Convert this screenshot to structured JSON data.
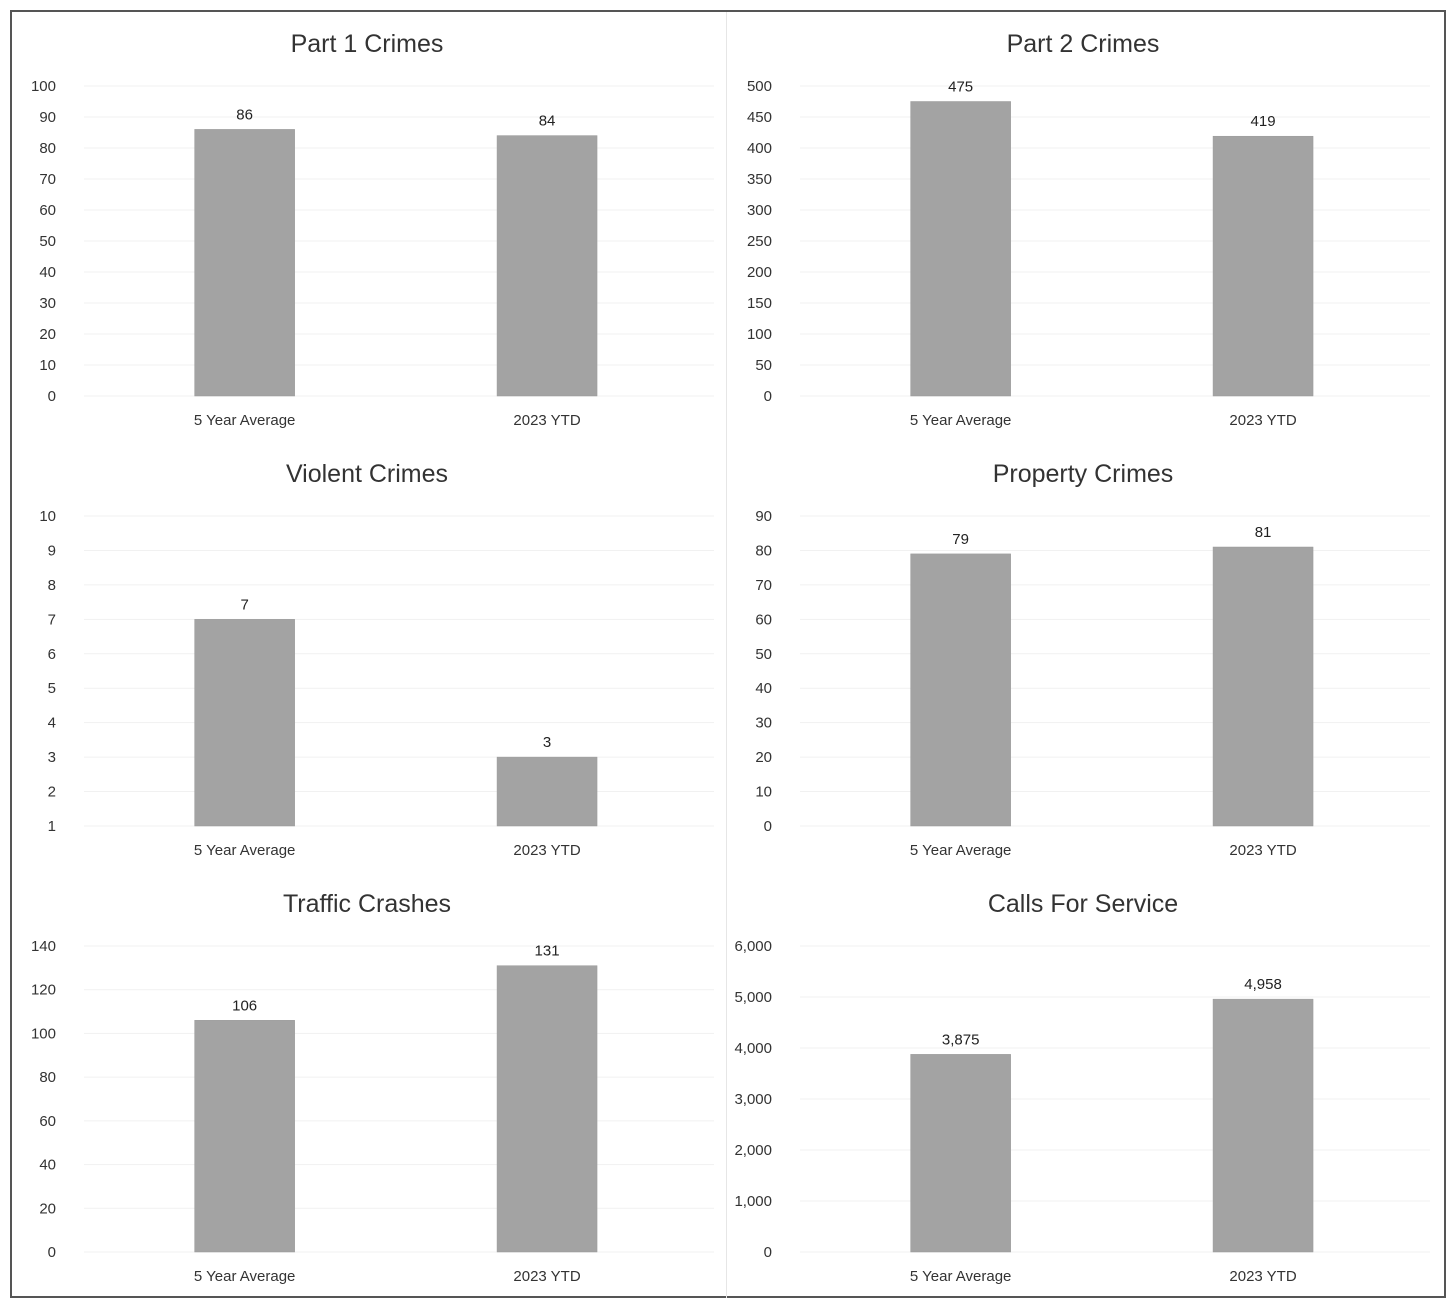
{
  "chart_data": [
    {
      "type": "bar",
      "title": "Part 1 Crimes",
      "categories": [
        "5 Year Average",
        "2023 YTD"
      ],
      "values": [
        86,
        84
      ],
      "data_labels": [
        "86",
        "84"
      ],
      "yticks": [
        "0",
        "10",
        "20",
        "30",
        "40",
        "50",
        "60",
        "70",
        "80",
        "90",
        "100"
      ],
      "ylim": [
        0,
        100
      ],
      "grid": false
    },
    {
      "type": "bar",
      "title": "Part 2 Crimes",
      "categories": [
        "5 Year Average",
        "2023 YTD"
      ],
      "values": [
        475,
        419
      ],
      "data_labels": [
        "475",
        "419"
      ],
      "yticks": [
        "0",
        "50",
        "100",
        "150",
        "200",
        "250",
        "300",
        "350",
        "400",
        "450",
        "500"
      ],
      "ylim": [
        0,
        500
      ],
      "grid": false
    },
    {
      "type": "bar",
      "title": "Violent Crimes",
      "categories": [
        "5 Year Average",
        "2023 YTD"
      ],
      "values": [
        7,
        3
      ],
      "data_labels": [
        "7",
        "3"
      ],
      "yticks": [
        "1",
        "2",
        "3",
        "4",
        "5",
        "6",
        "7",
        "8",
        "9",
        "10"
      ],
      "ylim": [
        1,
        10
      ],
      "grid": false
    },
    {
      "type": "bar",
      "title": "Property Crimes",
      "categories": [
        "5 Year Average",
        "2023 YTD"
      ],
      "values": [
        79,
        81
      ],
      "data_labels": [
        "79",
        "81"
      ],
      "yticks": [
        "0",
        "10",
        "20",
        "30",
        "40",
        "50",
        "60",
        "70",
        "80",
        "90"
      ],
      "ylim": [
        0,
        90
      ],
      "grid": false
    },
    {
      "type": "bar",
      "title": "Traffic Crashes",
      "categories": [
        "5 Year Average",
        "2023 YTD"
      ],
      "values": [
        106,
        131
      ],
      "data_labels": [
        "106",
        "131"
      ],
      "yticks": [
        "0",
        "20",
        "40",
        "60",
        "80",
        "100",
        "120",
        "140"
      ],
      "ylim": [
        0,
        140
      ],
      "grid": false
    },
    {
      "type": "bar",
      "title": "Calls For Service",
      "categories": [
        "5 Year Average",
        "2023 YTD"
      ],
      "values": [
        3875,
        4958
      ],
      "data_labels": [
        "3,875",
        "4,958"
      ],
      "yticks": [
        "0",
        "1,000",
        "2,000",
        "3,000",
        "4,000",
        "5,000",
        "6,000"
      ],
      "ylim": [
        0,
        6000
      ],
      "grid": false
    }
  ],
  "colors": {
    "bar": "#a3a3a3",
    "frame": "#555555"
  }
}
